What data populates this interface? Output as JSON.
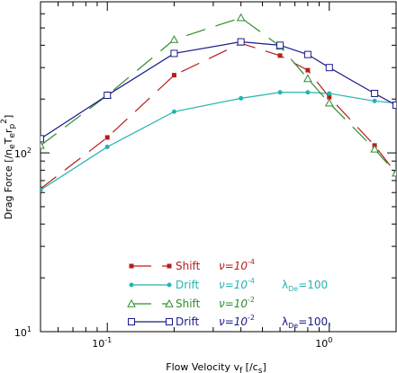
{
  "chart_data": {
    "type": "line",
    "xlabel": "Flow Velocity v",
    "xlabel_sub": "f",
    "xlabel_unit_prefix": " [/c",
    "xlabel_unit_sub": "s",
    "xlabel_unit_suffix": "]",
    "ylabel": "Drag Force [/n",
    "ylabel_sub_e": "e",
    "ylabel_T": "T",
    "ylabel_sub_e2": "e",
    "ylabel_r": "r",
    "ylabel_sub_p": "p",
    "ylabel_sup2": "2",
    "ylabel_close": "]",
    "x_scale": "log",
    "y_scale": "log",
    "xlim": [
      0.05,
      2.0
    ],
    "ylim": [
      10,
      700
    ],
    "x_ticks": [
      {
        "v": 0.1,
        "label": "10",
        "sup": "-1"
      },
      {
        "v": 1.0,
        "label": "10",
        "sup": "0"
      }
    ],
    "y_ticks": [
      {
        "v": 10,
        "label": "10",
        "sup": "1"
      },
      {
        "v": 100,
        "label": "10",
        "sup": "2"
      }
    ],
    "series": [
      {
        "name": "Shift",
        "param": "ν=10",
        "param_sup": "-4",
        "extra": "",
        "color": "#b71c1c",
        "marker": "filled-square",
        "dash": "22,12",
        "x": [
          0.05,
          0.1,
          0.2,
          0.4,
          0.6,
          0.8,
          1.0,
          1.6,
          2.0
        ],
        "y": [
          63,
          122,
          272,
          410,
          350,
          290,
          205,
          110,
          77
        ]
      },
      {
        "name": "Drift",
        "param": "ν=10",
        "param_sup": "-4",
        "extra": "λ",
        "extra_sub": "De",
        "extra_tail": "=100",
        "color": "#26b4b0",
        "marker": "filled-circle",
        "dash": "",
        "x": [
          0.05,
          0.1,
          0.2,
          0.4,
          0.6,
          0.8,
          1.0,
          1.6,
          2.0
        ],
        "y": [
          62,
          108,
          170,
          202,
          218,
          218,
          215,
          195,
          190
        ]
      },
      {
        "name": "Shift",
        "param": "ν=10",
        "param_sup": "-2",
        "extra": "",
        "color": "#2e8b2e",
        "marker": "open-triangle",
        "dash": "22,12",
        "x": [
          0.05,
          0.1,
          0.2,
          0.4,
          0.6,
          0.8,
          1.0,
          1.6,
          2.0
        ],
        "y": [
          110,
          210,
          430,
          570,
          395,
          260,
          190,
          105,
          77
        ]
      },
      {
        "name": "Drift",
        "param": "ν=10",
        "param_sup": "-2",
        "extra": "λ",
        "extra_sub": "De",
        "extra_tail": "=100,",
        "color": "#1a1a8c",
        "marker": "open-square",
        "dash": "",
        "x": [
          0.05,
          0.1,
          0.2,
          0.4,
          0.6,
          0.8,
          1.0,
          1.6,
          2.0
        ],
        "y": [
          120,
          210,
          360,
          418,
          400,
          355,
          300,
          215,
          185
        ]
      }
    ]
  }
}
